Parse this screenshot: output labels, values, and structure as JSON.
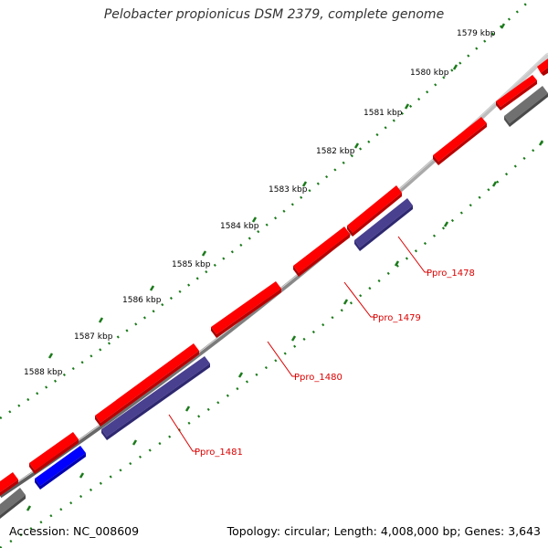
{
  "title": "Pelobacter propionicus DSM 2379, complete genome",
  "footer": {
    "accession": "Accession: NC_008609",
    "summary": "Topology: circular; Length: 4,008,000 bp; Genes: 3,643"
  },
  "ticks": [
    "1579 kbp",
    "1580 kbp",
    "1581 kbp",
    "1582 kbp",
    "1583 kbp",
    "1584 kbp",
    "1585 kbp",
    "1586 kbp",
    "1587 kbp",
    "1588 kbp"
  ],
  "gene_labels": [
    "Ppro_1478",
    "Ppro_1479",
    "Ppro_1480",
    "Ppro_1481"
  ],
  "colors": {
    "backbone": "#8a8a8a",
    "cds": "#ff0000",
    "rna_dark": "#4a4090",
    "rna_blue": "#0000ff",
    "other": "#707070",
    "tick": "#1a7a1a",
    "label": "#dd0000"
  }
}
